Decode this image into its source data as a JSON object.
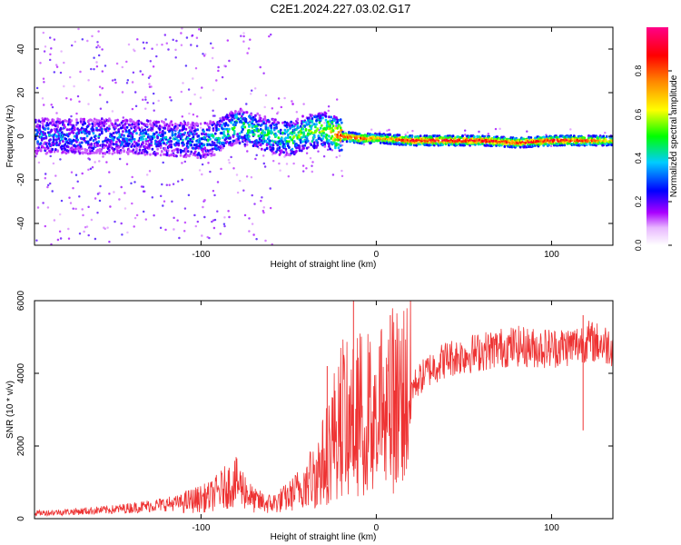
{
  "title": "C2E1.2024.227.03.02.G17",
  "chart_data": [
    {
      "type": "heatmap",
      "title": "C2E1.2024.227.03.02.G17",
      "xlabel": "Height of straight line (km)",
      "ylabel": "Frequency (Hz)",
      "xlim": [
        -195,
        135
      ],
      "ylim": [
        -50,
        50
      ],
      "x_ticks": [
        -100,
        0,
        100
      ],
      "x_tick_labels": [
        "-100",
        "0",
        "100"
      ],
      "y_ticks": [
        -40,
        -20,
        0,
        20,
        40
      ],
      "y_tick_labels": [
        "-40",
        "-20",
        "0",
        "20",
        "40"
      ],
      "colorbar": {
        "label": "Normalized spectral amplitude",
        "range": [
          0,
          1
        ],
        "ticks": [
          0.0,
          0.2,
          0.4,
          0.6,
          0.8
        ],
        "tick_labels": [
          "0.0",
          "0.2",
          "0.4",
          "0.6",
          "0.8"
        ],
        "colors": [
          "#ffffff",
          "#aa00ff",
          "#0000ff",
          "#00ccff",
          "#00ff00",
          "#ffff00",
          "#ff8800",
          "#ff0000",
          "#ff0088"
        ]
      },
      "ridge": {
        "description": "spectral peak along frequency near 0 Hz",
        "x": [
          -195,
          -150,
          -120,
          -100,
          -90,
          -80,
          -70,
          -60,
          -50,
          -40,
          -30,
          -20,
          -10,
          0,
          20,
          40,
          60,
          80,
          100,
          120,
          135
        ],
        "freq": [
          0,
          0,
          -1,
          -2,
          0,
          5,
          3,
          0,
          -1,
          2,
          3,
          0,
          -1,
          -1,
          -2,
          -2,
          -2,
          -3,
          -2,
          -2,
          -2
        ],
        "amplitude": [
          0.3,
          0.3,
          0.3,
          0.35,
          0.4,
          0.45,
          0.45,
          0.45,
          0.5,
          0.55,
          0.6,
          0.85,
          0.9,
          0.75,
          0.95,
          0.98,
          0.95,
          0.9,
          0.95,
          0.9,
          0.7
        ]
      }
    },
    {
      "type": "line",
      "xlabel": "Height of straight line (km)",
      "ylabel": "SNR (10 * v/v)",
      "xlim": [
        -195,
        135
      ],
      "ylim": [
        0,
        6000
      ],
      "x_ticks": [
        -100,
        0,
        100
      ],
      "x_tick_labels": [
        "-100",
        "0",
        "100"
      ],
      "y_ticks": [
        0,
        2000,
        4000,
        6000
      ],
      "y_tick_labels": [
        "0",
        "2000",
        "4000",
        "6000"
      ],
      "color": "#ee3333",
      "series_envelope": {
        "x": [
          -195,
          -170,
          -150,
          -130,
          -110,
          -95,
          -85,
          -80,
          -75,
          -70,
          -60,
          -50,
          -40,
          -35,
          -30,
          -25,
          -22,
          -20,
          -15,
          -12,
          -10,
          -5,
          0,
          5,
          10,
          15,
          20,
          30,
          40,
          50,
          60,
          70,
          80,
          90,
          100,
          110,
          115,
          120,
          125,
          130,
          135
        ],
        "y": [
          150,
          200,
          250,
          350,
          450,
          600,
          900,
          1000,
          800,
          500,
          400,
          600,
          1000,
          1200,
          1600,
          2200,
          2600,
          2900,
          2600,
          2700,
          2900,
          2900,
          3000,
          3300,
          3300,
          3400,
          3600,
          4100,
          4400,
          4500,
          4600,
          4700,
          4750,
          4700,
          4700,
          4750,
          4800,
          4900,
          4850,
          4800,
          4750
        ]
      },
      "spikes": [
        {
          "x": -13,
          "y": 6000
        },
        {
          "x": -28,
          "y": 4200
        },
        {
          "x": 8,
          "y": 5600
        },
        {
          "x": 118,
          "y": 5600
        }
      ]
    }
  ]
}
